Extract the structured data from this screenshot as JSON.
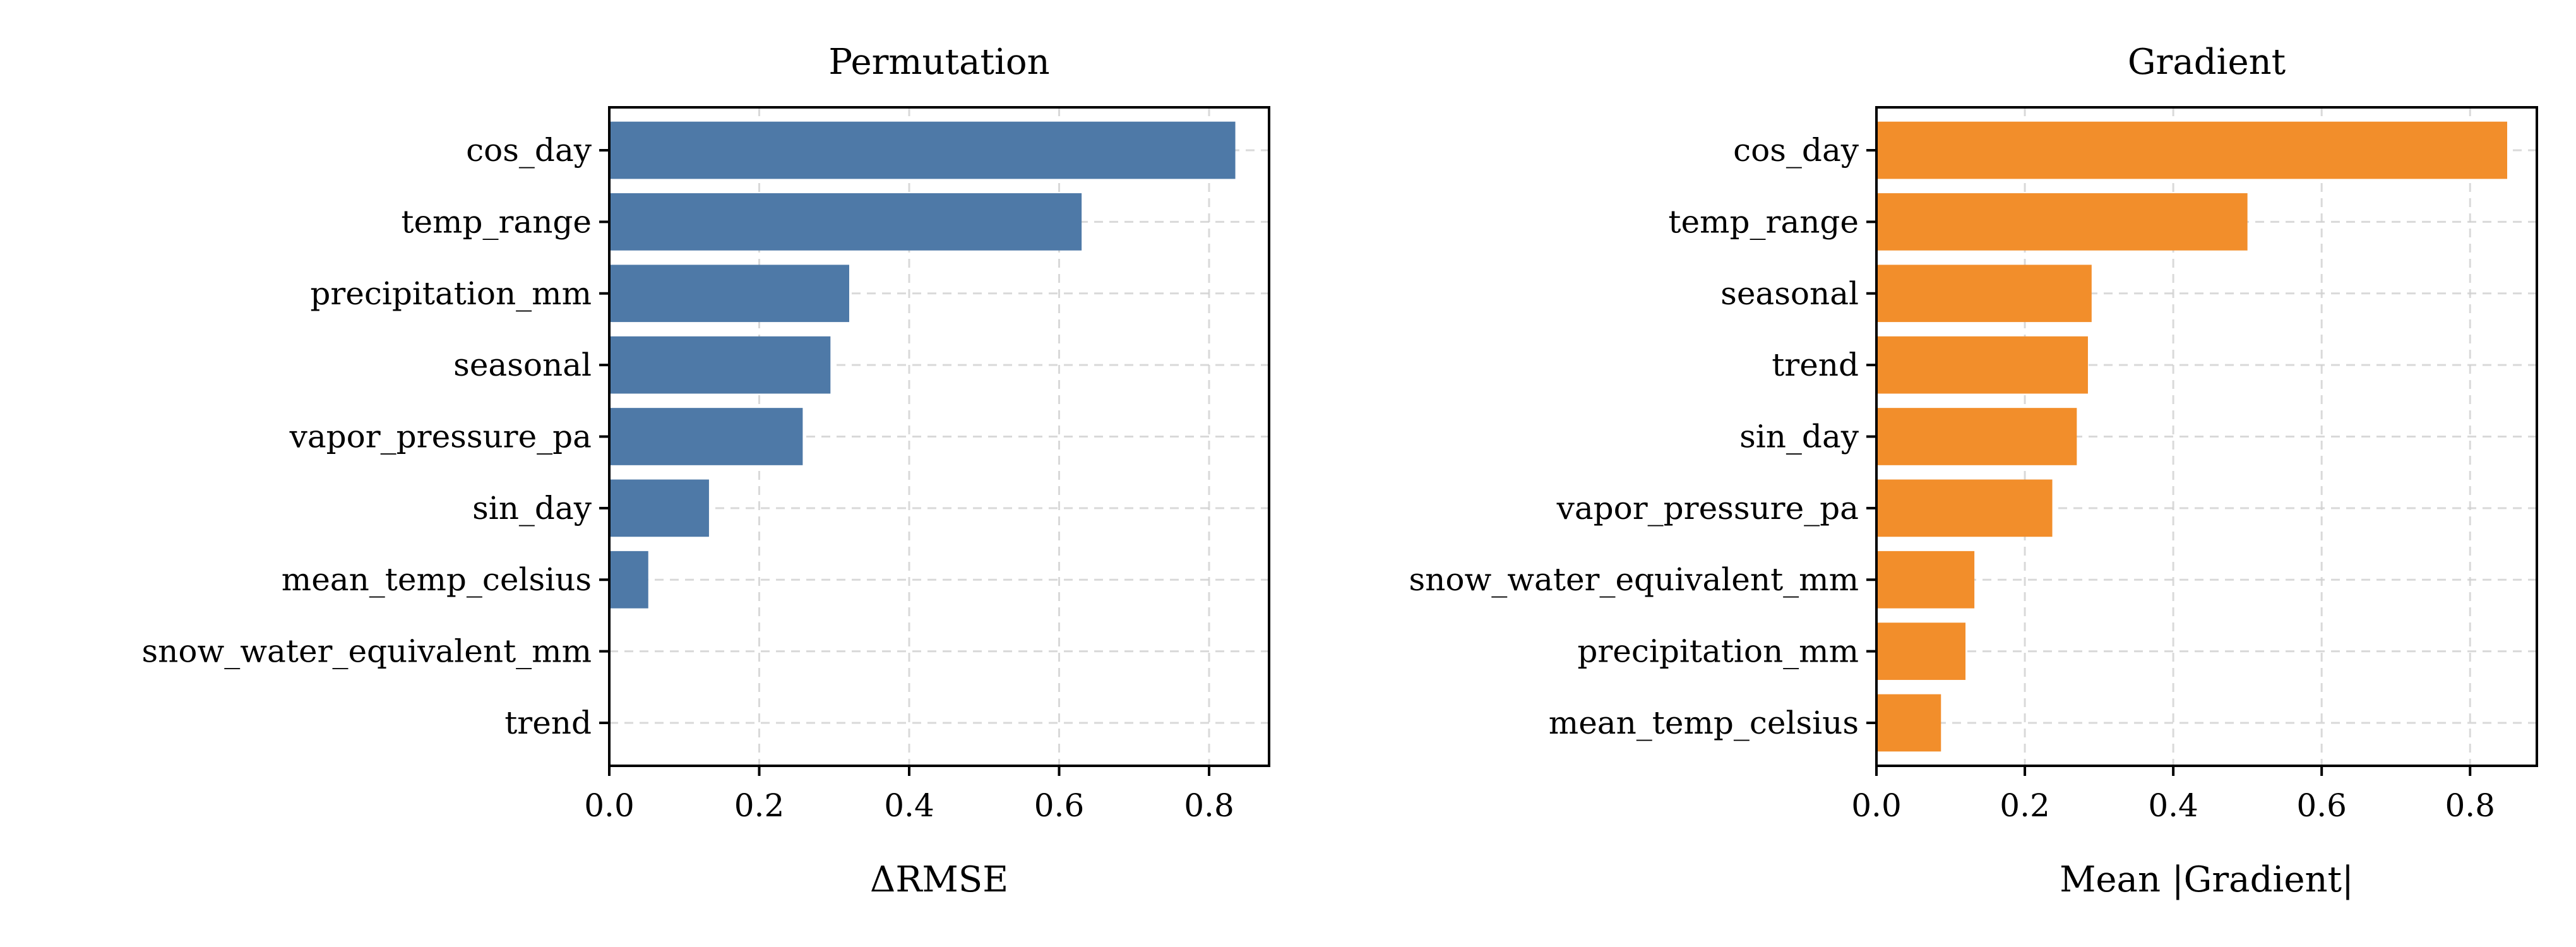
{
  "chart_data": [
    {
      "type": "bar",
      "orientation": "horizontal",
      "title": "Permutation",
      "xlabel": "ΔRMSE",
      "ylabel": "",
      "xlim": [
        0,
        0.88
      ],
      "xticks": [
        0.0,
        0.2,
        0.4,
        0.6,
        0.8
      ],
      "xtick_labels": [
        "0.0",
        "0.2",
        "0.4",
        "0.6",
        "0.8"
      ],
      "grid": true,
      "color": "#4e79a7",
      "categories": [
        "cos_day",
        "temp_range",
        "precipitation_mm",
        "seasonal",
        "vapor_pressure_pa",
        "sin_day",
        "mean_temp_celsius",
        "snow_water_equivalent_mm",
        "trend"
      ],
      "values": [
        0.835,
        0.63,
        0.32,
        0.295,
        0.258,
        0.133,
        0.052,
        0.0,
        0.0
      ]
    },
    {
      "type": "bar",
      "orientation": "horizontal",
      "title": "Gradient",
      "xlabel": "Mean |Gradient|",
      "ylabel": "",
      "xlim": [
        0,
        0.89
      ],
      "xticks": [
        0.0,
        0.2,
        0.4,
        0.6,
        0.8
      ],
      "xtick_labels": [
        "0.0",
        "0.2",
        "0.4",
        "0.6",
        "0.8"
      ],
      "grid": true,
      "color": "#f28e2b",
      "categories": [
        "cos_day",
        "temp_range",
        "seasonal",
        "trend",
        "sin_day",
        "vapor_pressure_pa",
        "snow_water_equivalent_mm",
        "precipitation_mm",
        "mean_temp_celsius"
      ],
      "values": [
        0.85,
        0.5,
        0.29,
        0.285,
        0.27,
        0.237,
        0.132,
        0.12,
        0.087
      ]
    }
  ]
}
